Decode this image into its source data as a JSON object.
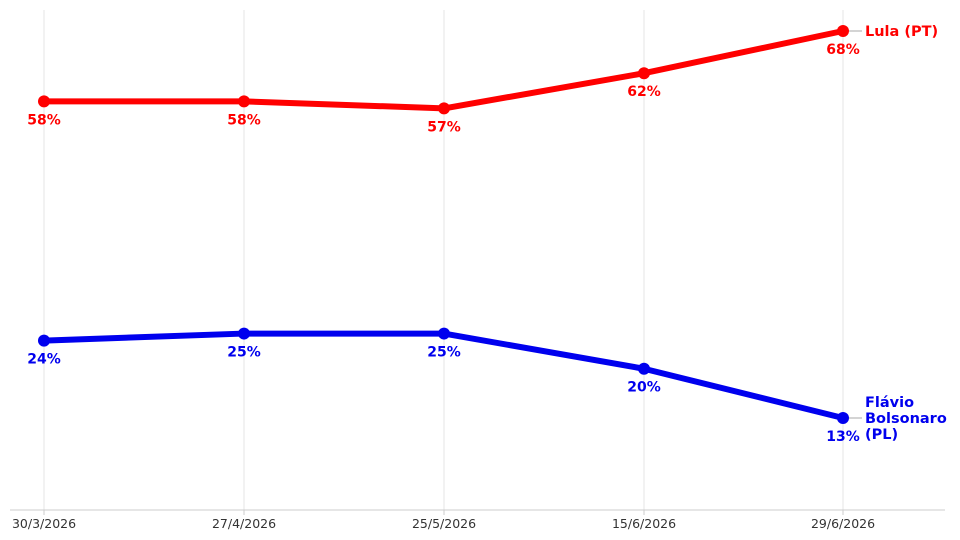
{
  "chart_data": {
    "type": "line",
    "categories": [
      "30/3/2026",
      "27/4/2026",
      "25/5/2026",
      "15/6/2026",
      "29/6/2026"
    ],
    "series": [
      {
        "name": "Lula (PT)",
        "name_lines": [
          "Lula (PT)"
        ],
        "color": "#ff0000",
        "values": [
          58,
          58,
          57,
          62,
          68
        ],
        "labels": [
          "58%",
          "58%",
          "57%",
          "62%",
          "68%"
        ]
      },
      {
        "name": "Flávio Bolsonaro (PL)",
        "name_lines": [
          "Flávio",
          "Bolsonaro",
          "(PL)"
        ],
        "color": "#0000ee",
        "values": [
          24,
          25,
          25,
          20,
          13
        ],
        "labels": [
          "24%",
          "25%",
          "25%",
          "20%",
          "13%"
        ]
      }
    ],
    "ylim": [
      0,
      72
    ],
    "grid": "vertical",
    "legend": "direct-labels-right"
  }
}
